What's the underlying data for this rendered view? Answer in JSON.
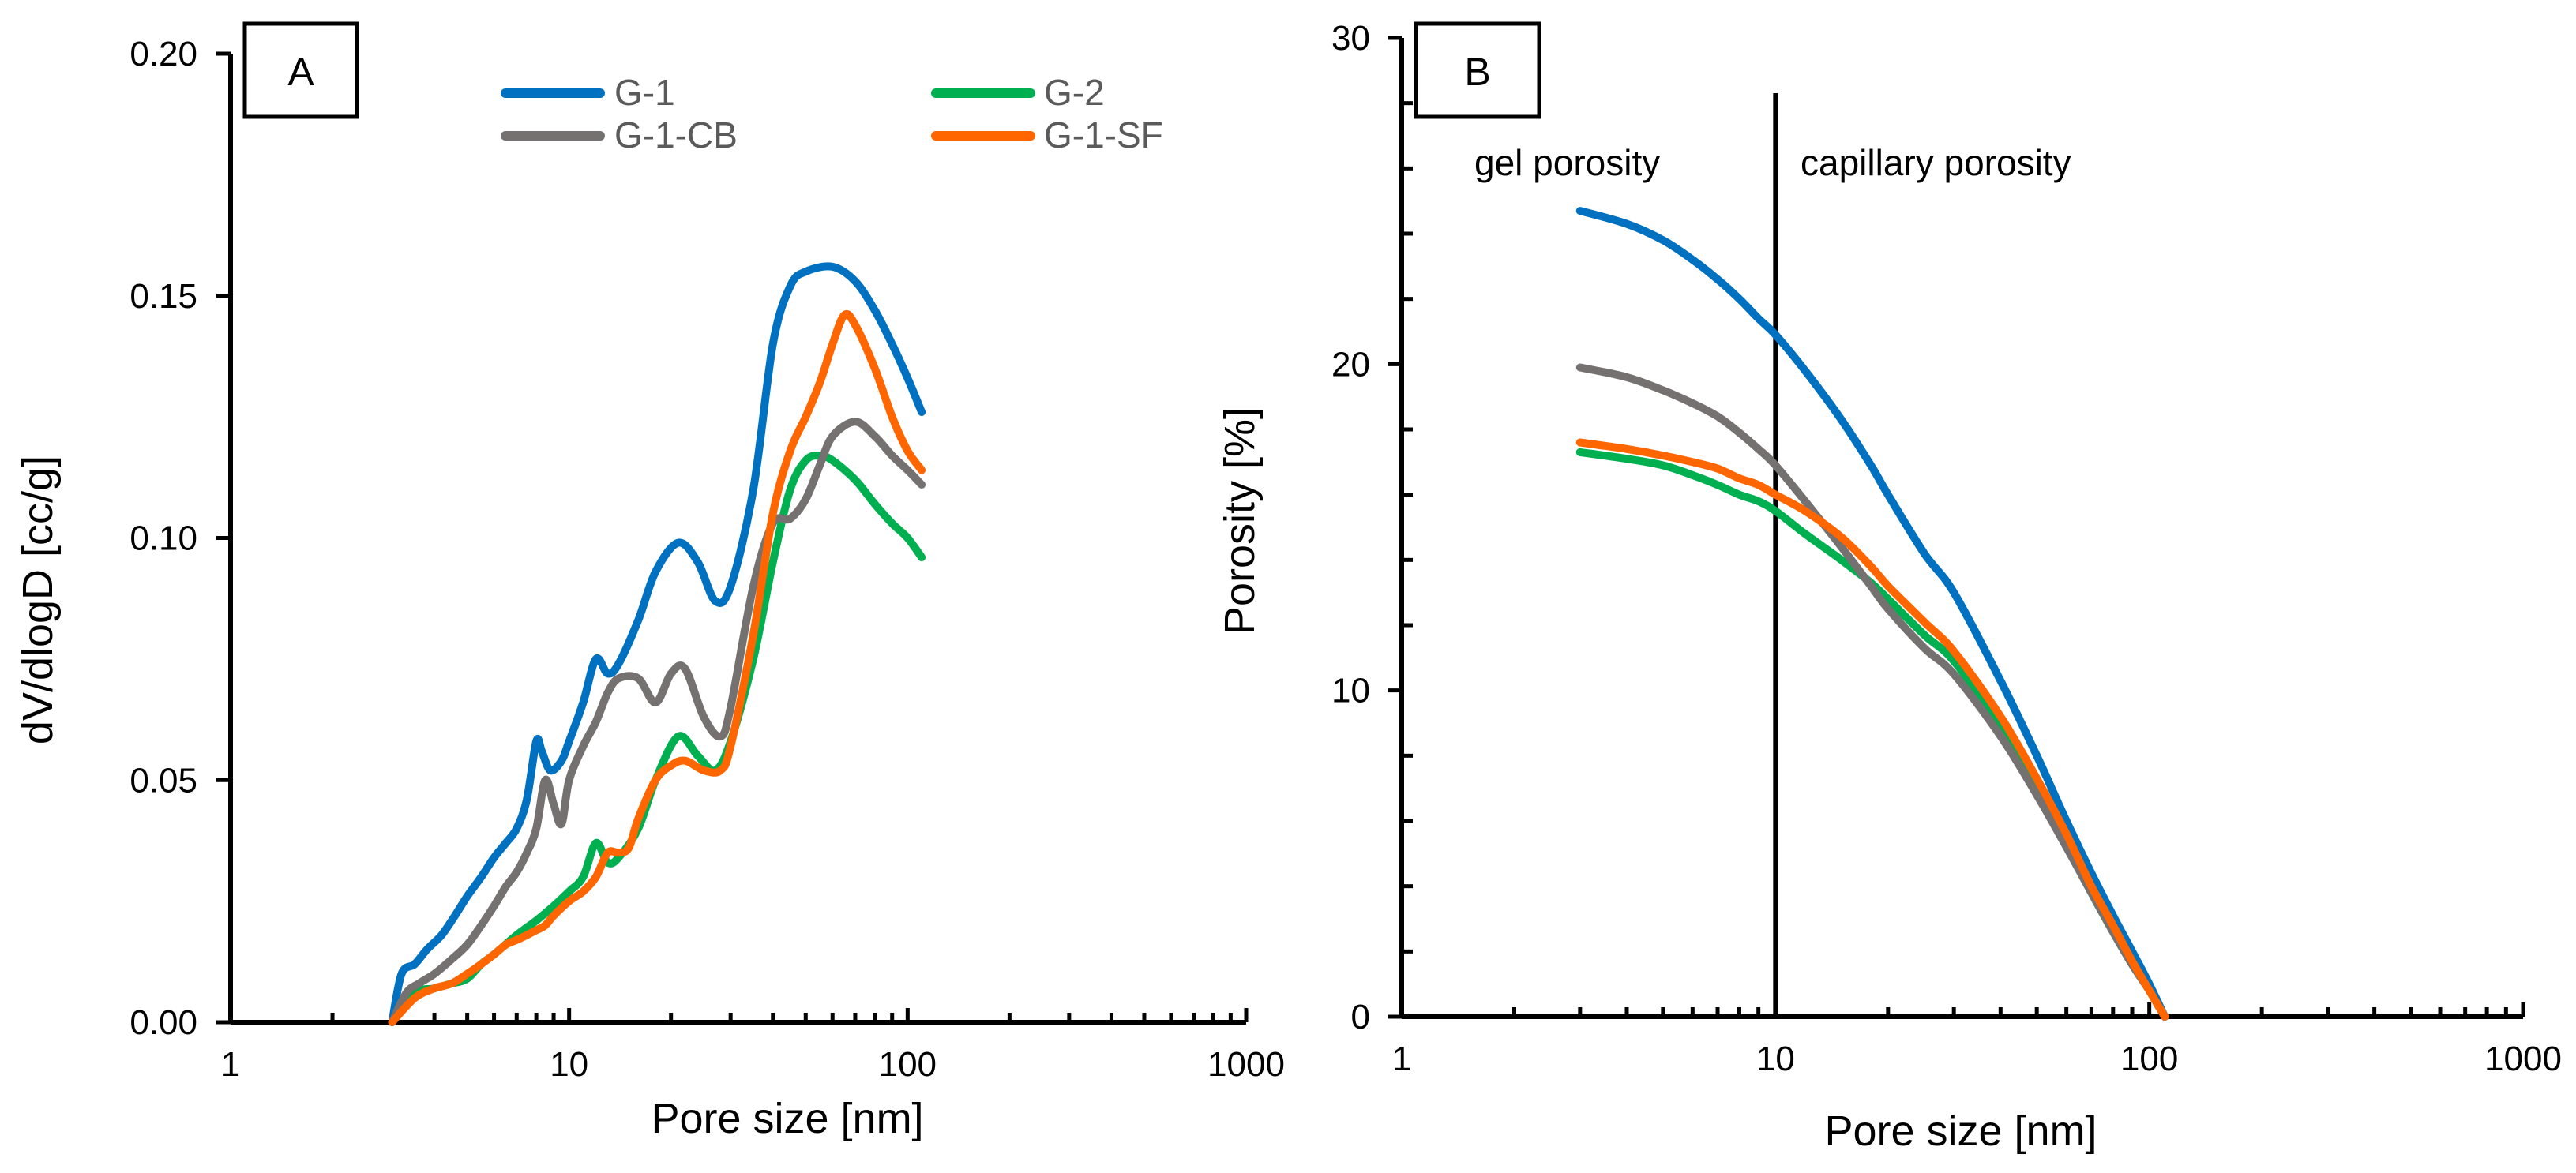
{
  "chart_data": [
    {
      "panel": "A",
      "type": "line",
      "xscale": "log",
      "xlabel": "Pore size [nm]",
      "ylabel": "dV/dlogD [cc/g]",
      "xlim": [
        1,
        1000
      ],
      "ylim": [
        0,
        0.2
      ],
      "xticks": [
        1,
        10,
        100,
        1000
      ],
      "xtick_labels": [
        "1",
        "10",
        "100",
        "1000"
      ],
      "yticks": [
        0,
        0.05,
        0.1,
        0.15,
        0.2
      ],
      "ytick_labels": [
        "0.00",
        "0.05",
        "0.10",
        "0.15",
        "0.20"
      ],
      "legend_position": "top",
      "series": [
        {
          "name": "G-1",
          "color": "#0070C0",
          "x": [
            3,
            3.2,
            3.5,
            3.8,
            4.2,
            4.6,
            5,
            5.5,
            6,
            6.5,
            7,
            7.5,
            8,
            8.3,
            8.8,
            9.5,
            10,
            11,
            12,
            13,
            14,
            16,
            18,
            21,
            24,
            27,
            30,
            35,
            40,
            45,
            50,
            60,
            70,
            80,
            90,
            100,
            110
          ],
          "y": [
            0,
            0.01,
            0.012,
            0.015,
            0.018,
            0.022,
            0.026,
            0.03,
            0.034,
            0.037,
            0.04,
            0.046,
            0.058,
            0.056,
            0.052,
            0.054,
            0.058,
            0.066,
            0.075,
            0.072,
            0.074,
            0.083,
            0.093,
            0.099,
            0.095,
            0.087,
            0.09,
            0.11,
            0.14,
            0.152,
            0.155,
            0.156,
            0.153,
            0.147,
            0.14,
            0.133,
            0.126
          ]
        },
        {
          "name": "G-2",
          "color": "#00B050",
          "x": [
            3,
            3.5,
            4,
            4.5,
            5,
            5.5,
            6,
            7,
            8,
            9,
            10,
            11,
            12,
            13,
            14,
            16,
            18,
            21,
            24,
            27,
            30,
            35,
            40,
            45,
            50,
            55,
            60,
            70,
            80,
            90,
            100,
            110
          ],
          "y": [
            0,
            0.006,
            0.007,
            0.008,
            0.009,
            0.012,
            0.014,
            0.018,
            0.021,
            0.024,
            0.027,
            0.03,
            0.037,
            0.033,
            0.034,
            0.04,
            0.05,
            0.059,
            0.055,
            0.052,
            0.058,
            0.075,
            0.095,
            0.11,
            0.116,
            0.117,
            0.116,
            0.112,
            0.107,
            0.103,
            0.1,
            0.096
          ]
        },
        {
          "name": "G-1-CB",
          "color": "#767171",
          "x": [
            3,
            3.3,
            3.6,
            4,
            4.5,
            5,
            5.5,
            6,
            6.5,
            7,
            7.5,
            8,
            8.5,
            9,
            9.5,
            10,
            11,
            12,
            13,
            14,
            16,
            18,
            20,
            22,
            25,
            28,
            30,
            35,
            40,
            45,
            50,
            55,
            60,
            70,
            80,
            90,
            100,
            110
          ],
          "y": [
            0,
            0.006,
            0.008,
            0.01,
            0.013,
            0.016,
            0.02,
            0.024,
            0.028,
            0.031,
            0.035,
            0.04,
            0.05,
            0.045,
            0.041,
            0.05,
            0.057,
            0.062,
            0.068,
            0.071,
            0.071,
            0.066,
            0.072,
            0.073,
            0.063,
            0.059,
            0.065,
            0.09,
            0.103,
            0.104,
            0.108,
            0.115,
            0.121,
            0.124,
            0.121,
            0.117,
            0.114,
            0.111
          ]
        },
        {
          "name": "G-1-SF",
          "color": "#FF6600",
          "x": [
            3,
            3.5,
            4,
            4.5,
            5,
            5.5,
            6,
            6.5,
            7,
            7.5,
            8,
            8.5,
            9,
            10,
            11,
            12,
            13,
            14,
            15,
            16,
            18,
            20,
            22,
            25,
            28,
            30,
            35,
            40,
            45,
            50,
            55,
            60,
            65,
            70,
            80,
            90,
            100,
            110
          ],
          "y": [
            0,
            0.005,
            0.007,
            0.008,
            0.01,
            0.012,
            0.014,
            0.016,
            0.017,
            0.018,
            0.019,
            0.02,
            0.022,
            0.025,
            0.027,
            0.03,
            0.035,
            0.035,
            0.036,
            0.042,
            0.05,
            0.053,
            0.054,
            0.052,
            0.052,
            0.057,
            0.08,
            0.105,
            0.118,
            0.125,
            0.132,
            0.14,
            0.146,
            0.144,
            0.135,
            0.125,
            0.118,
            0.114
          ]
        }
      ]
    },
    {
      "panel": "B",
      "type": "line",
      "xscale": "log",
      "xlabel": "Pore size [nm]",
      "ylabel": "Porosity [%]",
      "xlim": [
        1,
        1000
      ],
      "ylim": [
        0,
        30
      ],
      "xticks": [
        1,
        10,
        100,
        1000
      ],
      "xtick_labels": [
        "1",
        "10",
        "100",
        "1000"
      ],
      "yticks": [
        0,
        10,
        20,
        30
      ],
      "ytick_labels": [
        "0",
        "10",
        "20",
        "30"
      ],
      "vline_x": 10,
      "annotations": [
        "gel porosity",
        "capillary porosity"
      ],
      "series": [
        {
          "name": "G-1",
          "color": "#0070C0",
          "x": [
            3,
            4,
            5,
            6,
            7,
            8,
            9,
            10,
            12,
            15,
            18,
            20,
            25,
            30,
            40,
            50,
            60,
            70,
            80,
            90,
            100,
            110
          ],
          "y": [
            24.7,
            24.3,
            23.8,
            23.2,
            22.6,
            22.0,
            21.4,
            20.9,
            19.8,
            18.3,
            16.9,
            16.0,
            14.2,
            13.0,
            10.3,
            8.0,
            6.0,
            4.4,
            3.1,
            2.0,
            1.0,
            0
          ]
        },
        {
          "name": "G-2",
          "color": "#00B050",
          "x": [
            3,
            4,
            5,
            6,
            7,
            8,
            9,
            10,
            12,
            15,
            18,
            20,
            25,
            30,
            40,
            50,
            60,
            70,
            80,
            90,
            100,
            110
          ],
          "y": [
            17.3,
            17.1,
            16.9,
            16.6,
            16.3,
            16.0,
            15.8,
            15.5,
            14.8,
            14.0,
            13.3,
            12.8,
            11.7,
            10.9,
            8.9,
            7.0,
            5.3,
            3.8,
            2.6,
            1.6,
            0.8,
            0
          ]
        },
        {
          "name": "G-1-CB",
          "color": "#767171",
          "x": [
            3,
            4,
            5,
            6,
            7,
            8,
            9,
            10,
            12,
            15,
            18,
            20,
            25,
            30,
            40,
            50,
            60,
            70,
            80,
            90,
            100,
            110
          ],
          "y": [
            19.9,
            19.6,
            19.2,
            18.8,
            18.4,
            17.9,
            17.4,
            16.9,
            15.8,
            14.4,
            13.2,
            12.5,
            11.3,
            10.5,
            8.6,
            6.8,
            5.2,
            3.8,
            2.6,
            1.6,
            0.8,
            0
          ]
        },
        {
          "name": "G-1-SF",
          "color": "#FF6600",
          "x": [
            3,
            4,
            5,
            6,
            7,
            8,
            9,
            10,
            12,
            15,
            18,
            20,
            25,
            30,
            40,
            50,
            60,
            70,
            80,
            90,
            100,
            110
          ],
          "y": [
            17.6,
            17.4,
            17.2,
            17.0,
            16.8,
            16.5,
            16.3,
            16.0,
            15.5,
            14.7,
            13.8,
            13.2,
            12.1,
            11.2,
            9.2,
            7.3,
            5.6,
            4.0,
            2.8,
            1.7,
            0.8,
            0
          ]
        }
      ]
    }
  ]
}
